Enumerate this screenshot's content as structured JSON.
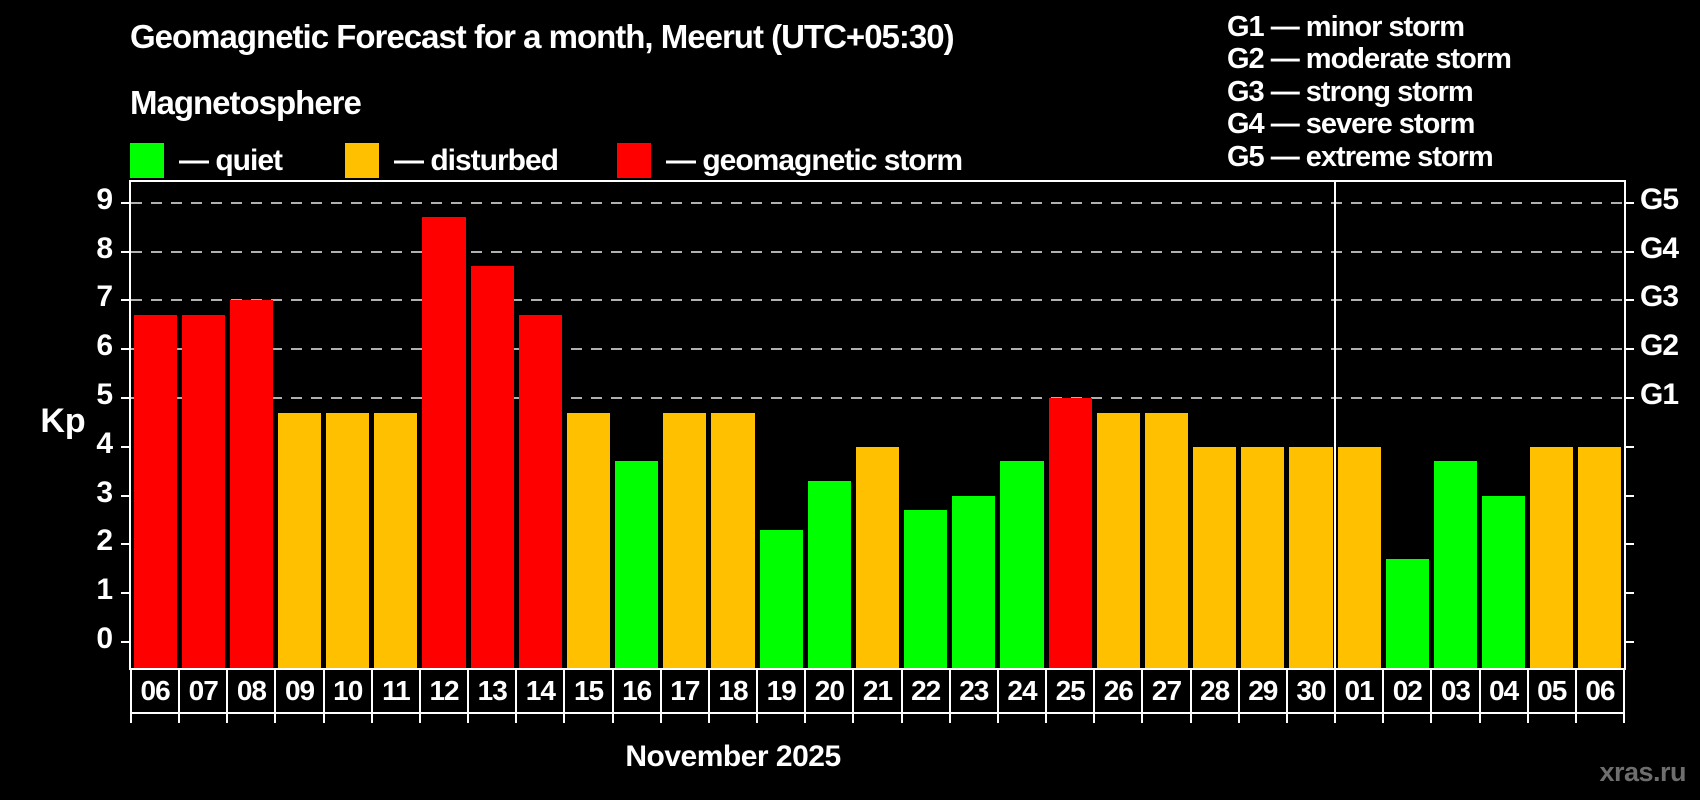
{
  "title": "Geomagnetic Forecast for a month, Meerut (UTC+05:30)",
  "subtitle": "Magnetosphere",
  "legend": {
    "quiet_label": "— quiet",
    "disturbed_label": "— disturbed",
    "storm_label": "— geomagnetic storm"
  },
  "g_scale_legend": [
    "G1 — minor storm",
    "G2 — moderate storm",
    "G3 — strong storm",
    "G4 — severe storm",
    "G5 — extreme storm"
  ],
  "y_axis": {
    "label": "Kp",
    "ticks": [
      "0",
      "1",
      "2",
      "3",
      "4",
      "5",
      "6",
      "7",
      "8",
      "9"
    ]
  },
  "right_axis": {
    "ticks": [
      0,
      1,
      2,
      3,
      4,
      5,
      6,
      7,
      8,
      9
    ],
    "labels": [
      {
        "text": "G1",
        "kp": 5
      },
      {
        "text": "G2",
        "kp": 6
      },
      {
        "text": "G3",
        "kp": 7
      },
      {
        "text": "G4",
        "kp": 8
      },
      {
        "text": "G5",
        "kp": 9
      }
    ]
  },
  "x_axis": {
    "month_label": "November 2025"
  },
  "watermark": "xras.ru",
  "colors": {
    "quiet": "#00ff00",
    "disturbed": "#ffc000",
    "storm": "#ff0000",
    "background": "#000000",
    "grid": "#b0b0b0",
    "axis": "#ffffff",
    "watermark": "#6e6e6e"
  },
  "chart_data": {
    "type": "bar",
    "title": "Geomagnetic Forecast for a month, Meerut (UTC+05:30)",
    "xlabel": "November 2025",
    "ylabel": "Kp",
    "ylim": [
      0,
      9
    ],
    "grid_kp_levels": [
      5,
      6,
      7,
      8,
      9
    ],
    "legend_position": "top-left",
    "month_separator_after_index": 24,
    "days": [
      {
        "date": "06",
        "kp": 6.7,
        "status": "storm"
      },
      {
        "date": "07",
        "kp": 6.7,
        "status": "storm"
      },
      {
        "date": "08",
        "kp": 7.0,
        "status": "storm"
      },
      {
        "date": "09",
        "kp": 4.7,
        "status": "disturbed"
      },
      {
        "date": "10",
        "kp": 4.7,
        "status": "disturbed"
      },
      {
        "date": "11",
        "kp": 4.7,
        "status": "disturbed"
      },
      {
        "date": "12",
        "kp": 8.7,
        "status": "storm"
      },
      {
        "date": "13",
        "kp": 7.7,
        "status": "storm"
      },
      {
        "date": "14",
        "kp": 6.7,
        "status": "storm"
      },
      {
        "date": "15",
        "kp": 4.7,
        "status": "disturbed"
      },
      {
        "date": "16",
        "kp": 3.7,
        "status": "quiet"
      },
      {
        "date": "17",
        "kp": 4.7,
        "status": "disturbed"
      },
      {
        "date": "18",
        "kp": 4.7,
        "status": "disturbed"
      },
      {
        "date": "19",
        "kp": 2.3,
        "status": "quiet"
      },
      {
        "date": "20",
        "kp": 3.3,
        "status": "quiet"
      },
      {
        "date": "21",
        "kp": 4.0,
        "status": "disturbed"
      },
      {
        "date": "22",
        "kp": 2.7,
        "status": "quiet"
      },
      {
        "date": "23",
        "kp": 3.0,
        "status": "quiet"
      },
      {
        "date": "24",
        "kp": 3.7,
        "status": "quiet"
      },
      {
        "date": "25",
        "kp": 5.0,
        "status": "storm"
      },
      {
        "date": "26",
        "kp": 4.7,
        "status": "disturbed"
      },
      {
        "date": "27",
        "kp": 4.7,
        "status": "disturbed"
      },
      {
        "date": "28",
        "kp": 4.0,
        "status": "disturbed"
      },
      {
        "date": "29",
        "kp": 4.0,
        "status": "disturbed"
      },
      {
        "date": "30",
        "kp": 4.0,
        "status": "disturbed"
      },
      {
        "date": "01",
        "kp": 4.0,
        "status": "disturbed"
      },
      {
        "date": "02",
        "kp": 1.7,
        "status": "quiet"
      },
      {
        "date": "03",
        "kp": 3.7,
        "status": "quiet"
      },
      {
        "date": "04",
        "kp": 3.0,
        "status": "quiet"
      },
      {
        "date": "05",
        "kp": 4.0,
        "status": "disturbed"
      },
      {
        "date": "06",
        "kp": 4.0,
        "status": "disturbed"
      }
    ]
  }
}
